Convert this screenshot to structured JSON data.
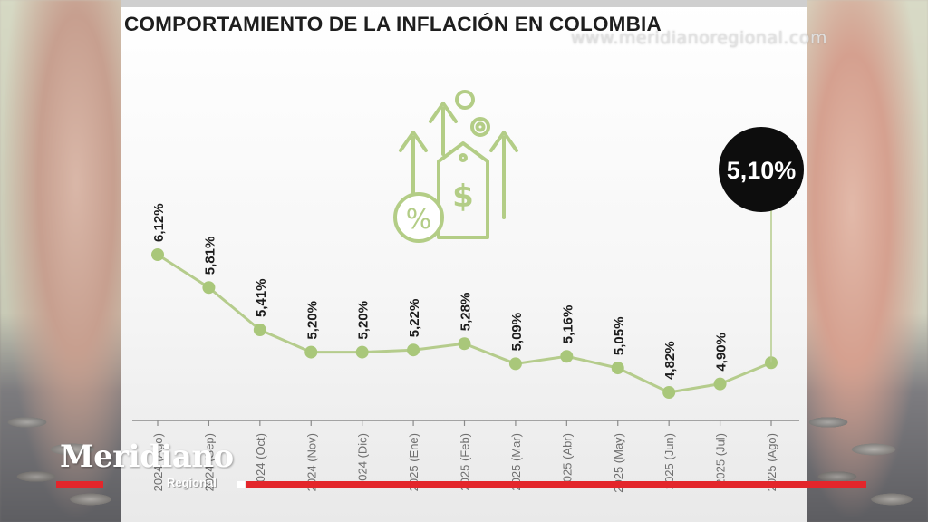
{
  "title": "COMPORTAMIENTO DE LA INFLACIÓN EN COLOMBIA",
  "watermark": "www.meridianoregional.com",
  "logo": {
    "main": "Meridiano",
    "sub": "Regional"
  },
  "colors": {
    "line": "#b5cc8c",
    "point": "#a9c77a",
    "callout_bg": "#0d0d0d",
    "callout_text": "#ffffff",
    "stripe": "#e3262b",
    "axis": "#8a8a8a"
  },
  "icon": "rising-price-tag-percent-icon",
  "chart_data": {
    "type": "line",
    "title": "COMPORTAMIENTO DE LA INFLACIÓN EN COLOMBIA",
    "categories": [
      "2024 (Ago)",
      "2024 (Sep)",
      "2024 (Oct)",
      "2024 (Nov)",
      "2024 (Dic)",
      "2025 (Ene)",
      "2025 (Feb)",
      "2025 (Mar)",
      "2025 (Abr)",
      "2025 (May)",
      "2025 (Jun)",
      "2025 (Jul)",
      "2025 (Ago)"
    ],
    "values": [
      6.12,
      5.81,
      5.41,
      5.2,
      5.2,
      5.22,
      5.28,
      5.09,
      5.16,
      5.05,
      4.82,
      4.9,
      5.1
    ],
    "labels": [
      "6,12%",
      "5,81%",
      "5,41%",
      "5,20%",
      "5,20%",
      "5,22%",
      "5,28%",
      "5,09%",
      "5,16%",
      "5,05%",
      "4,82%",
      "4,90%",
      ""
    ],
    "highlight": {
      "index": 12,
      "label": "5,10%"
    },
    "ylim": [
      4.82,
      6.12
    ],
    "grid": false
  }
}
